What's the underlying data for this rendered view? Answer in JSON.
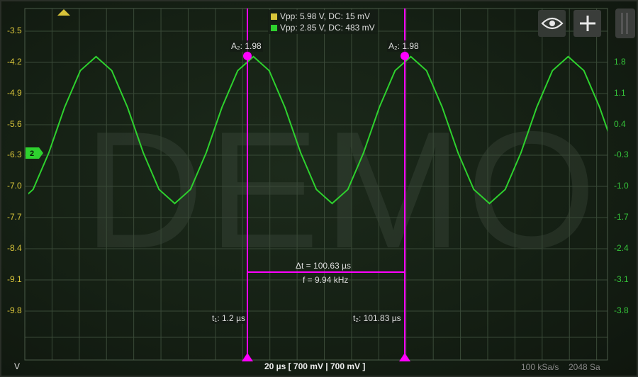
{
  "watermark": "DEMO",
  "legend": [
    {
      "text": "Vpp: 5.98 V, DC: 15 mV",
      "color": "#d8c43a"
    },
    {
      "text": "Vpp: 2.85 V, DC: 483 mV",
      "color": "#2ed12e"
    }
  ],
  "left_axis": {
    "unit": "V",
    "ticks": [
      "-3.5",
      "-4.2",
      "-4.9",
      "-5.6",
      "-6.3",
      "-7.0",
      "-7.7",
      "-8.4",
      "-9.1",
      "-9.8"
    ]
  },
  "right_axis": {
    "ticks": [
      "1.8",
      "1.1",
      "0.4",
      "-0.3",
      "-1.0",
      "-1.7",
      "-2.4",
      "-3.1",
      "-3.8"
    ]
  },
  "channel_marker": "2",
  "cursors": {
    "a1": "A₂: 1.98",
    "a2": "A₂: 1.98",
    "t1": "t₁: 1.2 µs",
    "t2": "t₂: 101.83 µs",
    "delta_t": "Δt = 100.63 µs",
    "freq": "f = 9.94 kHz",
    "color": "#ff00ff"
  },
  "status": {
    "timebase": "20 µs  [ 700 mV | 700 mV ]",
    "sample_rate": "100 kSa/s",
    "samples": "2048 Sa"
  },
  "buttons": {
    "visibility": "eye-icon",
    "add": "plus-icon"
  },
  "colors": {
    "ch1": "#d8c43a",
    "ch2": "#2ed12e",
    "grid": "#3a4a38"
  }
}
